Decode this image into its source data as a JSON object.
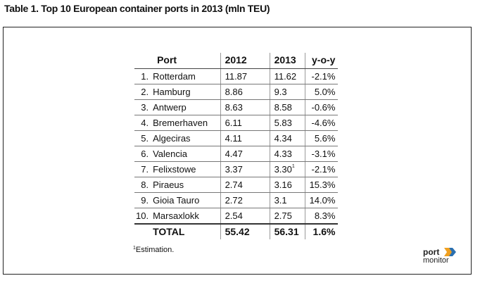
{
  "caption": "Table 1. Top 10 European container ports in 2013 (mln TEU)",
  "table": {
    "headers": [
      "Port",
      "2012",
      "2013",
      "y-o-y"
    ],
    "rows": [
      {
        "rank": "1.",
        "port": "Rotterdam",
        "y2012": "11.87",
        "y2013": "11.62",
        "yoy": "-2.1%"
      },
      {
        "rank": "2.",
        "port": "Hamburg",
        "y2012": "8.86",
        "y2013": "9.3",
        "yoy": "5.0%"
      },
      {
        "rank": "3.",
        "port": "Antwerp",
        "y2012": "8.63",
        "y2013": "8.58",
        "yoy": "-0.6%"
      },
      {
        "rank": "4.",
        "port": "Bremerhaven",
        "y2012": "6.11",
        "y2013": "5.83",
        "yoy": "-4.6%"
      },
      {
        "rank": "5.",
        "port": "Algeciras",
        "y2012": "4.11",
        "y2013": "4.34",
        "yoy": "5.6%"
      },
      {
        "rank": "6.",
        "port": "Valencia",
        "y2012": "4.47",
        "y2013": "4.33",
        "yoy": "-3.1%"
      },
      {
        "rank": "7.",
        "port": "Felixstowe",
        "y2012": "3.37",
        "y2013": "3.30",
        "y2013_note": "1",
        "yoy": "-2.1%"
      },
      {
        "rank": "8.",
        "port": "Piraeus",
        "y2012": "2.74",
        "y2013": "3.16",
        "yoy": "15.3%"
      },
      {
        "rank": "9.",
        "port": "Gioia Tauro",
        "y2012": "2.72",
        "y2013": "3.1",
        "yoy": "14.0%"
      },
      {
        "rank": "10.",
        "port": "Marsaxlokk",
        "y2012": "2.54",
        "y2013": "2.75",
        "yoy": "8.3%"
      }
    ],
    "total": {
      "label": "TOTAL",
      "y2012": "55.42",
      "y2013": "56.31",
      "yoy": "1.6%"
    }
  },
  "footnote": {
    "mark": "1",
    "text": "Estimation."
  },
  "logo": {
    "line1": "port",
    "line2": "monitor",
    "accent_color": "#f0a020",
    "accent_color_2": "#2a6fb0"
  }
}
